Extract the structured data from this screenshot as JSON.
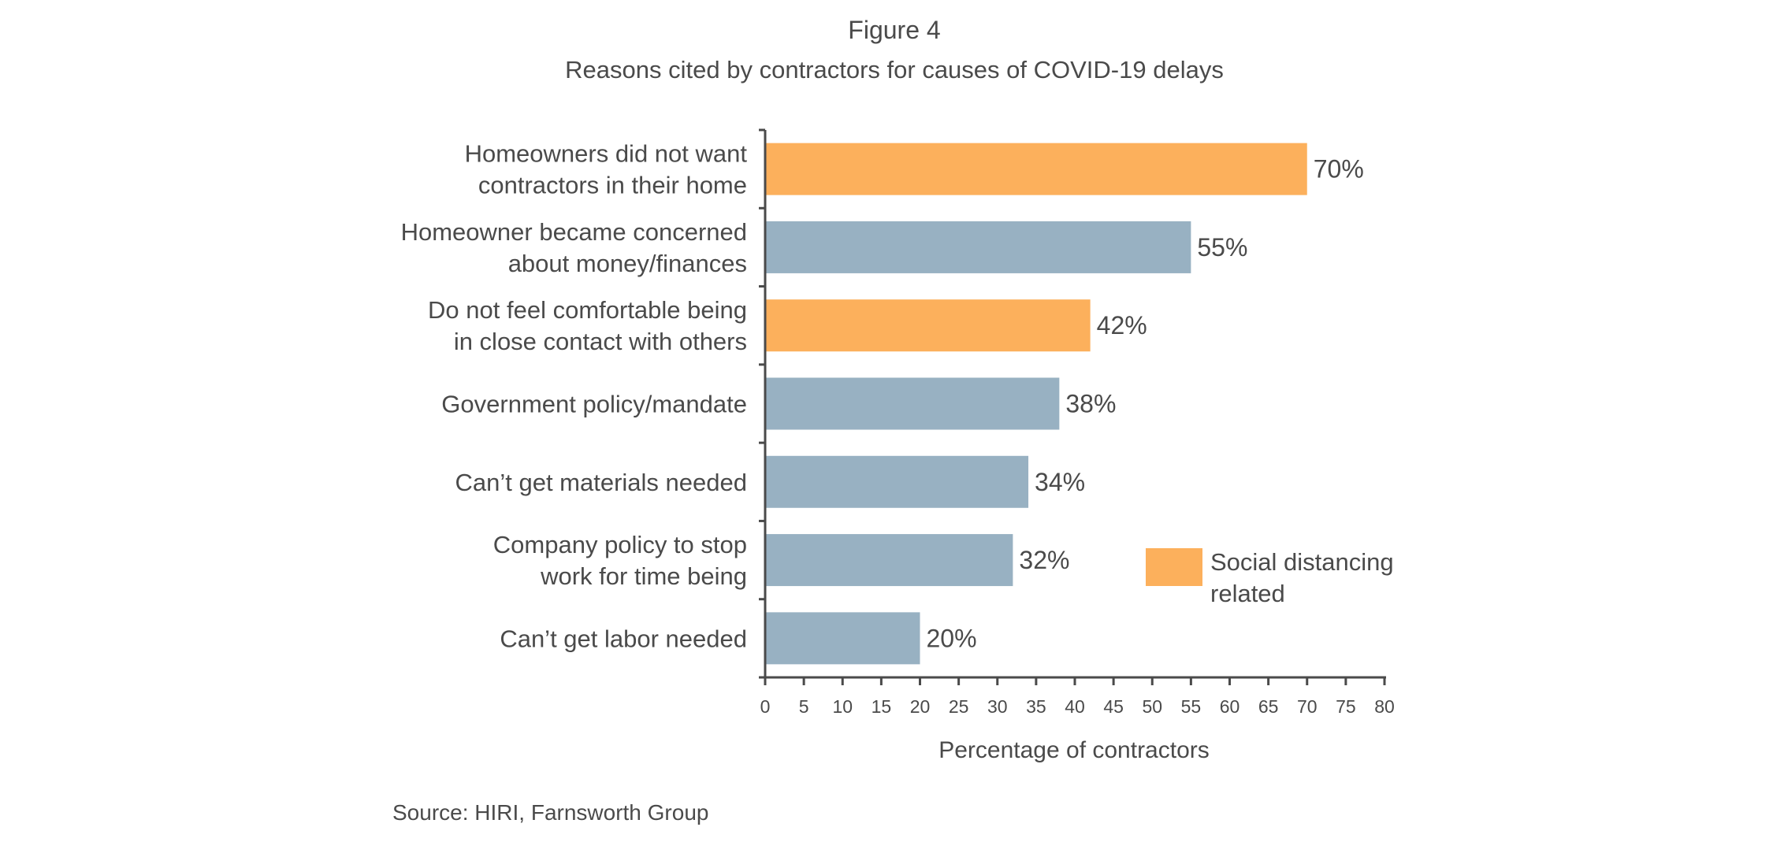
{
  "figure_label": "Figure 4",
  "title": "Reasons cited by contractors for causes of COVID-19 delays",
  "source": "Source: HIRI, Farnsworth Group",
  "colors": {
    "social": "#fcb05c",
    "other": "#98b1c2"
  },
  "chart_data": {
    "type": "bar",
    "orientation": "horizontal",
    "title": "Reasons cited by contractors for causes of COVID-19 delays",
    "xlabel": "Percentage of contractors",
    "ylabel": "",
    "xlim": [
      0,
      80
    ],
    "xticks": [
      0,
      5,
      10,
      15,
      20,
      25,
      30,
      35,
      40,
      45,
      50,
      55,
      60,
      65,
      70,
      75,
      80
    ],
    "grid": false,
    "legend": {
      "position": "right",
      "entries": [
        {
          "label": [
            "Social distancing",
            "related"
          ],
          "color": "#fcb05c"
        }
      ]
    },
    "bars": [
      {
        "label": [
          "Homeowners did not want",
          "contractors in their home"
        ],
        "value": 70,
        "value_label": "70%",
        "social_distancing": true
      },
      {
        "label": [
          "Homeowner became concerned",
          "about money/finances"
        ],
        "value": 55,
        "value_label": "55%",
        "social_distancing": false
      },
      {
        "label": [
          "Do not feel comfortable being",
          "in close contact with others"
        ],
        "value": 42,
        "value_label": "42%",
        "social_distancing": true
      },
      {
        "label": [
          "Government policy/mandate"
        ],
        "value": 38,
        "value_label": "38%",
        "social_distancing": false
      },
      {
        "label": [
          "Can’t get materials needed"
        ],
        "value": 34,
        "value_label": "34%",
        "social_distancing": false
      },
      {
        "label": [
          "Company policy to stop",
          "work for time being"
        ],
        "value": 32,
        "value_label": "32%",
        "social_distancing": false
      },
      {
        "label": [
          "Can’t get labor needed"
        ],
        "value": 20,
        "value_label": "20%",
        "social_distancing": false
      }
    ]
  }
}
